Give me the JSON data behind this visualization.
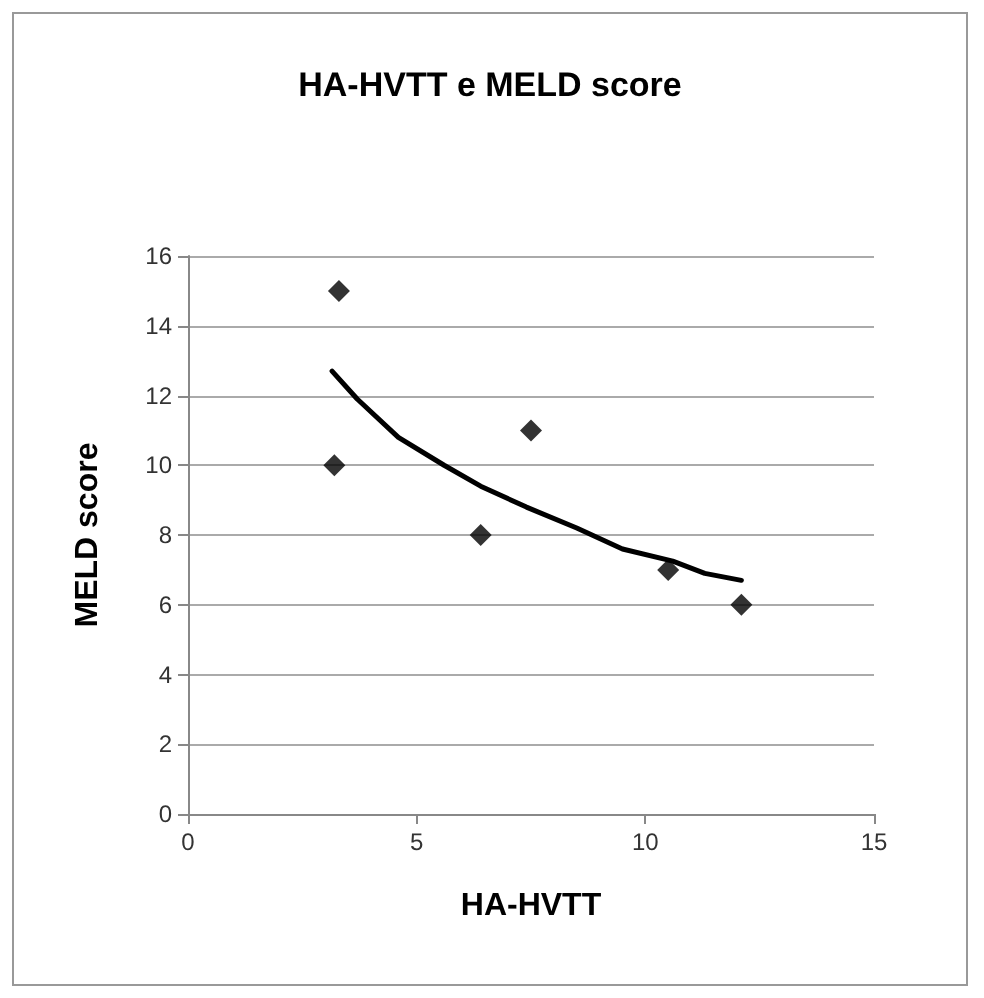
{
  "chart_data": {
    "type": "scatter",
    "title": "HA-HVTT e MELD score",
    "xlabel": "HA-HVTT",
    "ylabel": "MELD score",
    "series": [
      {
        "color": "#000000",
        "marker": "diamond",
        "x": [
          3.3,
          3.2,
          6.4,
          7.5,
          10.5,
          12.1
        ],
        "values": [
          15,
          10,
          8,
          11,
          7,
          6
        ]
      },
      {
        "type": "line",
        "color": "#000000",
        "marker": "none",
        "x": [
          3.15,
          3.7,
          4.6,
          5.6,
          6.4,
          7.4,
          8.5,
          9.5,
          10.6,
          11.3,
          12.1
        ],
        "values": [
          12.7,
          11.9,
          10.8,
          10.0,
          9.4,
          8.8,
          8.2,
          7.6,
          7.25,
          6.9,
          6.7
        ]
      }
    ],
    "xlim": [
      0,
      15
    ],
    "xticks": [
      0,
      5,
      10,
      15
    ],
    "ylim": [
      0,
      16
    ],
    "yticks": [
      0,
      2,
      4,
      6,
      8,
      10,
      12,
      14,
      16
    ],
    "grid": "y"
  }
}
